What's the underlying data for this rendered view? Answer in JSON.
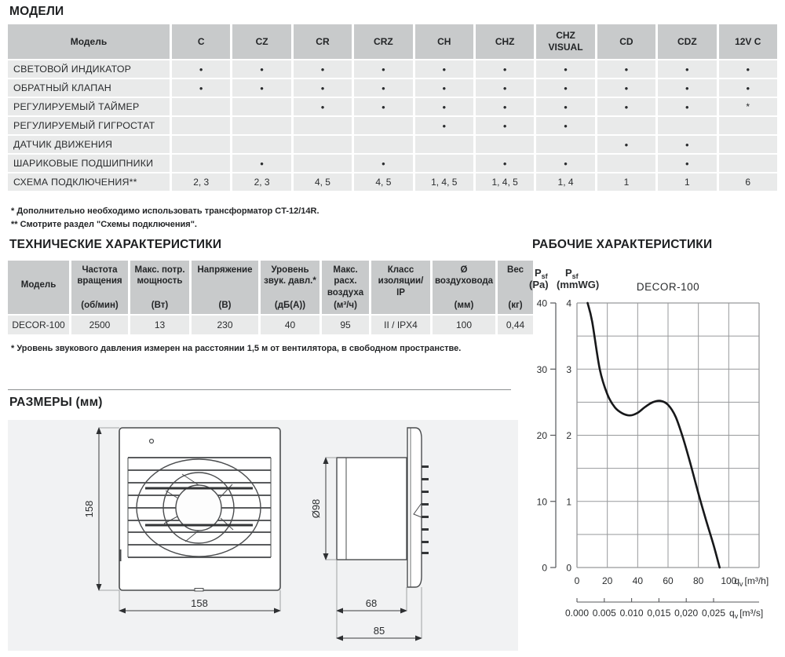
{
  "page": {
    "models_section": {
      "title": "МОДЕЛИ",
      "table": {
        "header_first": "Модель",
        "columns": [
          "C",
          "CZ",
          "CR",
          "CRZ",
          "CH",
          "CHZ",
          "CHZ VISUAL",
          "CD",
          "CDZ",
          "12V C"
        ],
        "rows": [
          {
            "label": "СВЕТОВОЙ ИНДИКАТОР",
            "cells": [
              "•",
              "•",
              "•",
              "•",
              "•",
              "•",
              "•",
              "•",
              "•",
              "•"
            ]
          },
          {
            "label": "ОБРАТНЫЙ КЛАПАН",
            "cells": [
              "•",
              "•",
              "•",
              "•",
              "•",
              "•",
              "•",
              "•",
              "•",
              "•"
            ]
          },
          {
            "label": "РЕГУЛИРУЕМЫЙ ТАЙМЕР",
            "cells": [
              "",
              "",
              "•",
              "•",
              "•",
              "•",
              "•",
              "•",
              "•",
              "*"
            ]
          },
          {
            "label": "РЕГУЛИРУЕМЫЙ ГИГРОСТАТ",
            "cells": [
              "",
              "",
              "",
              "",
              "•",
              "•",
              "•",
              "",
              "",
              ""
            ]
          },
          {
            "label": "ДАТЧИК ДВИЖЕНИЯ",
            "cells": [
              "",
              "",
              "",
              "",
              "",
              "",
              "",
              "•",
              "•",
              ""
            ]
          },
          {
            "label": "ШАРИКОВЫЕ ПОДШИПНИКИ",
            "cells": [
              "",
              "•",
              "",
              "•",
              "",
              "•",
              "•",
              "",
              "•",
              ""
            ]
          },
          {
            "label": "СХЕМА ПОДКЛЮЧЕНИЯ**",
            "cells": [
              "2, 3",
              "2, 3",
              "4, 5",
              "4, 5",
              "1, 4, 5",
              "1, 4, 5",
              "1, 4",
              "1",
              "1",
              "6"
            ]
          }
        ]
      },
      "footnotes": [
        "* Дополнительно необходимо использовать трансформатор CT-12/14R.",
        "** Смотрите раздел \"Схемы подключения\"."
      ]
    },
    "tech_section": {
      "title": "ТЕХНИЧЕСКИЕ ХАРАКТЕРИСТИКИ",
      "table": {
        "columns": [
          {
            "name": "Модель",
            "unit": ""
          },
          {
            "name": "Частота вращения",
            "unit": "(об/мин)"
          },
          {
            "name": "Макс. потр. мощность",
            "unit": "(Вт)"
          },
          {
            "name": "Напряжение",
            "unit": "(В)"
          },
          {
            "name": "Уровень звук. давл.*",
            "unit": "(дБ(А))"
          },
          {
            "name": "Макс. расх. воздуха",
            "unit": "(м³/ч)"
          },
          {
            "name": "Класс изоляции/ IP",
            "unit": ""
          },
          {
            "name": "Ø воздуховода",
            "unit": "(мм)"
          },
          {
            "name": "Вес",
            "unit": "(кг)"
          }
        ],
        "row": [
          "DECOR-100",
          "2500",
          "13",
          "230",
          "40",
          "95",
          "II / IPX4",
          "100",
          "0,44"
        ]
      },
      "footnote": "* Уровень звукового давления измерен на расстоянии 1,5 м от вентилятора, в свободном пространстве."
    },
    "dimensions_section": {
      "title": "РАЗМЕРЫ (мм)",
      "labels": {
        "front_height": "158",
        "front_width": "158",
        "duct_diameter": "Ø98",
        "duct_depth": "68",
        "total_depth": "85"
      }
    },
    "performance_section": {
      "title": "РАБОЧИЕ ХАРАКТЕРИСТИКИ"
    }
  },
  "chart_data": {
    "type": "line",
    "title": "DECOR-100",
    "grid": true,
    "y_axis_left": {
      "sym": "P",
      "sub": "sf",
      "unit": "(Pa)",
      "ticks": [
        40,
        30,
        20,
        10,
        0
      ],
      "max": 40
    },
    "y_axis_right_inner": {
      "sym": "P",
      "sub": "sf",
      "unit": "(mmWG)",
      "ticks": [
        4,
        3,
        2,
        1,
        0
      ],
      "max": 4
    },
    "x_axis": {
      "sym": "q",
      "sub": "v",
      "unit": "[m³/h]",
      "ticks": [
        0,
        20,
        40,
        60,
        80,
        100
      ],
      "range": [
        0,
        120
      ],
      "grid_step": 20
    },
    "x_axis_secondary": {
      "sym": "q",
      "sub": "v",
      "unit": "[m³/s]",
      "tick_labels": [
        "0.000",
        "0.005",
        "0.010",
        "0,015",
        "0,020",
        "0,025"
      ]
    },
    "series": [
      {
        "name": "DECOR-100",
        "points_mmwg": [
          [
            7,
            4.0
          ],
          [
            10,
            3.72
          ],
          [
            15,
            3.0
          ],
          [
            20,
            2.62
          ],
          [
            25,
            2.42
          ],
          [
            30,
            2.33
          ],
          [
            35,
            2.3
          ],
          [
            40,
            2.34
          ],
          [
            45,
            2.43
          ],
          [
            50,
            2.5
          ],
          [
            55,
            2.52
          ],
          [
            60,
            2.46
          ],
          [
            65,
            2.28
          ],
          [
            70,
            1.95
          ],
          [
            75,
            1.55
          ],
          [
            80,
            1.12
          ],
          [
            85,
            0.72
          ],
          [
            90,
            0.34
          ],
          [
            94,
            0
          ]
        ]
      }
    ]
  }
}
